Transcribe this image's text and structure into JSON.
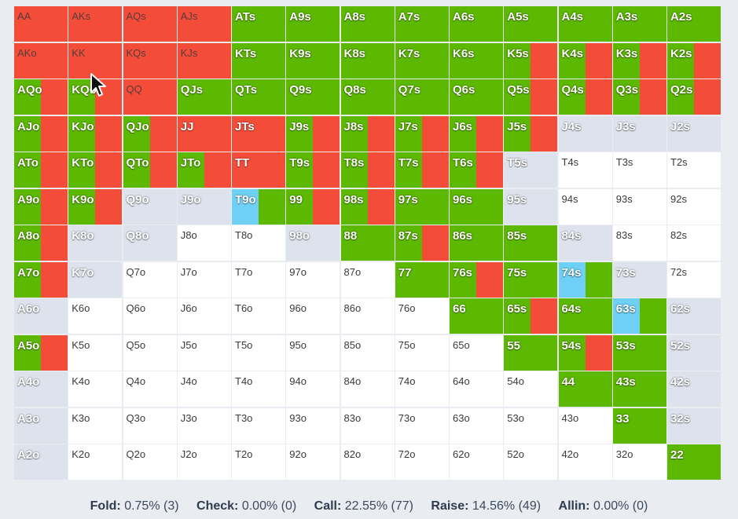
{
  "colors": {
    "raise": "#5cb800",
    "call": "#f34d3a",
    "check": "#6ed0f5",
    "fold": "#dde2ec",
    "empty": "#ffffff"
  },
  "hands": [
    [
      "AA",
      "AKs",
      "AQs",
      "AJs",
      "ATs",
      "A9s",
      "A8s",
      "A7s",
      "A6s",
      "A5s",
      "A4s",
      "A3s",
      "A2s"
    ],
    [
      "AKo",
      "KK",
      "KQs",
      "KJs",
      "KTs",
      "K9s",
      "K8s",
      "K7s",
      "K6s",
      "K5s",
      "K4s",
      "K3s",
      "K2s"
    ],
    [
      "AQo",
      "KQo",
      "QQ",
      "QJs",
      "QTs",
      "Q9s",
      "Q8s",
      "Q7s",
      "Q6s",
      "Q5s",
      "Q4s",
      "Q3s",
      "Q2s"
    ],
    [
      "AJo",
      "KJo",
      "QJo",
      "JJ",
      "JTs",
      "J9s",
      "J8s",
      "J7s",
      "J6s",
      "J5s",
      "J4s",
      "J3s",
      "J2s"
    ],
    [
      "ATo",
      "KTo",
      "QTo",
      "JTo",
      "TT",
      "T9s",
      "T8s",
      "T7s",
      "T6s",
      "T5s",
      "T4s",
      "T3s",
      "T2s"
    ],
    [
      "A9o",
      "K9o",
      "Q9o",
      "J9o",
      "T9o",
      "99",
      "98s",
      "97s",
      "96s",
      "95s",
      "94s",
      "93s",
      "92s"
    ],
    [
      "A8o",
      "K8o",
      "Q8o",
      "J8o",
      "T8o",
      "98o",
      "88",
      "87s",
      "86s",
      "85s",
      "84s",
      "83s",
      "82s"
    ],
    [
      "A7o",
      "K7o",
      "Q7o",
      "J7o",
      "T7o",
      "97o",
      "87o",
      "77",
      "76s",
      "75s",
      "74s",
      "73s",
      "72s"
    ],
    [
      "A6o",
      "K6o",
      "Q6o",
      "J6o",
      "T6o",
      "96o",
      "86o",
      "76o",
      "66",
      "65s",
      "64s",
      "63s",
      "62s"
    ],
    [
      "A5o",
      "K5o",
      "Q5o",
      "J5o",
      "T5o",
      "95o",
      "85o",
      "75o",
      "65o",
      "55",
      "54s",
      "53s",
      "52s"
    ],
    [
      "A4o",
      "K4o",
      "Q4o",
      "J4o",
      "T4o",
      "94o",
      "84o",
      "74o",
      "64o",
      "54o",
      "44",
      "43s",
      "42s"
    ],
    [
      "A3o",
      "K3o",
      "Q3o",
      "J3o",
      "T3o",
      "93o",
      "83o",
      "73o",
      "63o",
      "53o",
      "43o",
      "33",
      "32s"
    ],
    [
      "A2o",
      "K2o",
      "Q2o",
      "J2o",
      "T2o",
      "92o",
      "82o",
      "72o",
      "62o",
      "52o",
      "42o",
      "32o",
      "22"
    ]
  ],
  "actions": [
    [
      "C",
      "C",
      "C",
      "C",
      "R",
      "R",
      "R",
      "R",
      "R",
      "R",
      "R",
      "R",
      "R"
    ],
    [
      "C",
      "C",
      "C",
      "C",
      "R",
      "R",
      "R",
      "R",
      "R",
      "RC",
      "RC",
      "RC",
      "RC"
    ],
    [
      "RC",
      "RC",
      "C",
      "R",
      "R",
      "R",
      "R",
      "R",
      "R",
      "RC",
      "RC",
      "RC",
      "RC"
    ],
    [
      "RC",
      "RC",
      "RC",
      "C",
      "C",
      "RC",
      "RC",
      "RC",
      "RC",
      "RC",
      "F",
      "F",
      "F"
    ],
    [
      "RC",
      "RC",
      "RC",
      "RC",
      "C",
      "RC",
      "RC",
      "RC",
      "RC",
      "F",
      "E",
      "E",
      "E"
    ],
    [
      "RC",
      "RC",
      "F",
      "F",
      "KR",
      "RC",
      "RC",
      "R",
      "R",
      "F",
      "E",
      "E",
      "E"
    ],
    [
      "RC",
      "F",
      "F",
      "E",
      "E",
      "F",
      "R",
      "RC",
      "R",
      "R",
      "F",
      "E",
      "E"
    ],
    [
      "RC",
      "F",
      "E",
      "E",
      "E",
      "E",
      "E",
      "R",
      "RC",
      "R",
      "KR",
      "F",
      "E"
    ],
    [
      "F",
      "E",
      "E",
      "E",
      "E",
      "E",
      "E",
      "E",
      "R",
      "RC",
      "R",
      "KR",
      "F"
    ],
    [
      "RC",
      "E",
      "E",
      "E",
      "E",
      "E",
      "E",
      "E",
      "E",
      "R",
      "RC",
      "R",
      "F"
    ],
    [
      "F",
      "E",
      "E",
      "E",
      "E",
      "E",
      "E",
      "E",
      "E",
      "E",
      "R",
      "R",
      "F"
    ],
    [
      "F",
      "E",
      "E",
      "E",
      "E",
      "E",
      "E",
      "E",
      "E",
      "E",
      "E",
      "R",
      "F"
    ],
    [
      "F",
      "E",
      "E",
      "E",
      "E",
      "E",
      "E",
      "E",
      "E",
      "E",
      "E",
      "E",
      "R"
    ]
  ],
  "summary": {
    "fold_label": "Fold:",
    "fold_value": "0.75% (3)",
    "check_label": "Check:",
    "check_value": "0.00% (0)",
    "call_label": "Call:",
    "call_value": "22.55% (77)",
    "raise_label": "Raise:",
    "raise_value": "14.56% (49)",
    "allin_label": "Allin:",
    "allin_value": "0.00% (0)"
  }
}
